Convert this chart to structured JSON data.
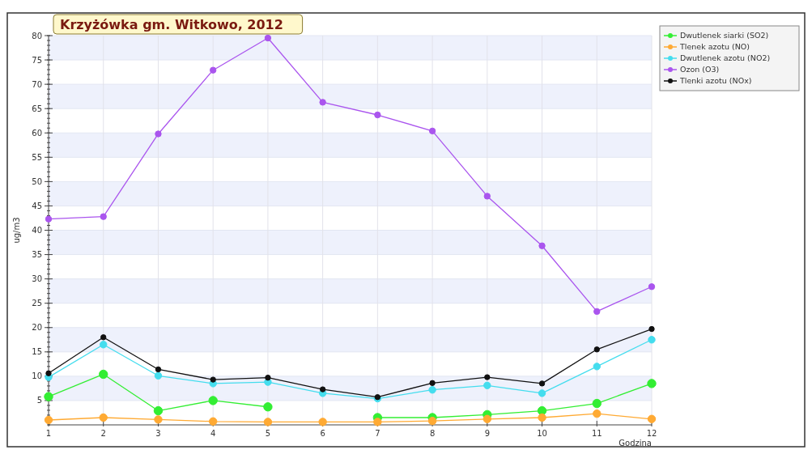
{
  "chart_data": {
    "type": "line",
    "title": "Krzyżówka gm. Witkowo, 2012",
    "xlabel": "Godzina",
    "ylabel": "ug/m3",
    "x": [
      1,
      2,
      3,
      4,
      5,
      6,
      7,
      8,
      9,
      10,
      11,
      12
    ],
    "series": [
      {
        "name": "Dwutlenek siarki (SO2)",
        "color": "#33ee33",
        "values": [
          5.8,
          10.4,
          2.9,
          5.0,
          3.7,
          null,
          1.5,
          1.5,
          2.1,
          2.9,
          4.4,
          8.5
        ]
      },
      {
        "name": "Tlenek azotu (NO)",
        "color": "#ffaa33",
        "values": [
          1.0,
          1.5,
          1.1,
          0.7,
          0.6,
          0.6,
          0.6,
          0.8,
          1.2,
          1.5,
          2.3,
          1.2
        ]
      },
      {
        "name": "Dwutlenek azotu (NO2)",
        "color": "#44ddee",
        "values": [
          9.8,
          16.5,
          10.1,
          8.5,
          8.8,
          6.5,
          5.4,
          7.2,
          8.1,
          6.5,
          12.0,
          17.5
        ]
      },
      {
        "name": "Ozon (O3)",
        "color": "#aa55ee",
        "values": [
          42.3,
          42.8,
          59.8,
          72.9,
          79.5,
          66.3,
          63.7,
          60.4,
          47.0,
          36.8,
          23.3,
          28.4
        ]
      },
      {
        "name": "Tlenki azotu (NOx)",
        "color": "#111111",
        "values": [
          10.6,
          18.0,
          11.4,
          9.3,
          9.7,
          7.3,
          5.7,
          8.6,
          9.8,
          8.5,
          15.5,
          19.7
        ]
      }
    ],
    "xlim": [
      1,
      12
    ],
    "xticks": [
      1,
      2,
      3,
      4,
      5,
      6,
      7,
      8,
      9,
      10,
      11,
      12
    ],
    "ylim": [
      0,
      80
    ],
    "yticks": [
      5,
      10,
      15,
      20,
      25,
      30,
      35,
      40,
      45,
      50,
      55,
      60,
      65,
      70,
      75,
      80
    ],
    "grid": true,
    "legend": "top right",
    "marker": "circle",
    "line_style": "solid"
  }
}
